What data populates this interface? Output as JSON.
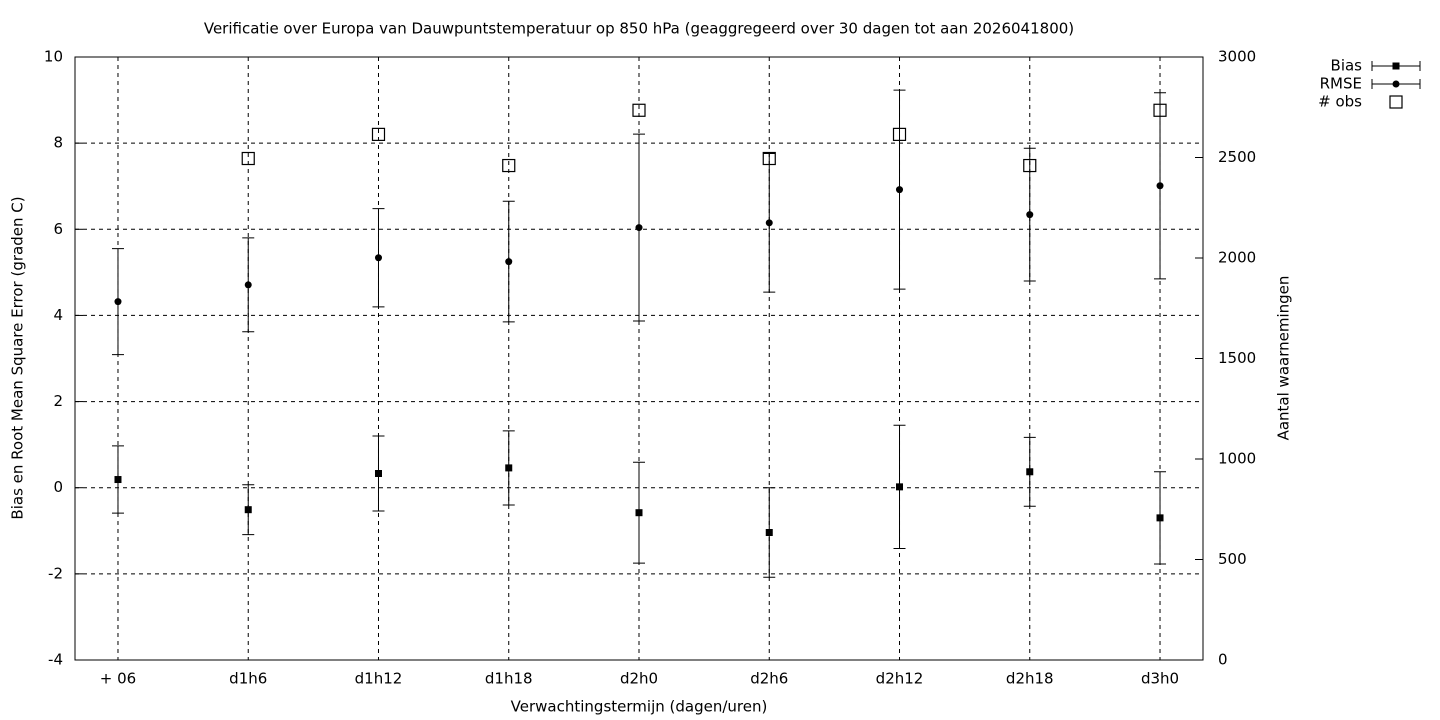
{
  "chart_data": {
    "type": "errorbar",
    "title": "Verificatie over Europa van Dauwpuntstemperatuur op 850 hPa (geaggregeerd over 30 dagen tot aan 2026041800)",
    "x_label": "Verwachtingstermijn (dagen/uren)",
    "y_label": "Bias en Root Mean Square Error (graden C)",
    "y2_label": "Aantal waarnemingen",
    "categories": [
      "+ 06",
      "d1h6",
      "d1h12",
      "d1h18",
      "d2h0",
      "d2h6",
      "d2h12",
      "d2h18",
      "d3h0"
    ],
    "ylim": [
      -4,
      10
    ],
    "yticks": [
      -4,
      -2,
      0,
      2,
      4,
      6,
      8,
      10
    ],
    "y2lim": [
      0,
      3000
    ],
    "y2ticks": [
      0,
      500,
      1000,
      1500,
      2000,
      2500,
      3000
    ],
    "grid": true,
    "legend": "top-right",
    "series": [
      {
        "name": "Bias",
        "color": "#000000",
        "marker": "square",
        "values": [
          0.19,
          -0.51,
          0.33,
          0.46,
          -0.58,
          -1.04,
          0.02,
          0.37,
          -0.7
        ],
        "errors": [
          0.78,
          0.58,
          0.87,
          0.86,
          1.17,
          1.04,
          1.43,
          0.8,
          1.07
        ]
      },
      {
        "name": "RMSE",
        "color": "#000000",
        "marker": "circle",
        "values": [
          4.32,
          4.71,
          5.34,
          5.25,
          6.04,
          6.15,
          6.92,
          6.34,
          7.01
        ],
        "errors": [
          1.23,
          1.09,
          1.14,
          1.4,
          2.17,
          1.61,
          2.31,
          1.54,
          2.16
        ]
      },
      {
        "name": "# obs",
        "color": "#000000",
        "marker": "open-square",
        "axis": "y2",
        "values": [
          null,
          2495,
          2615,
          2460,
          2735,
          2495,
          2615,
          2460,
          2735
        ]
      }
    ]
  }
}
